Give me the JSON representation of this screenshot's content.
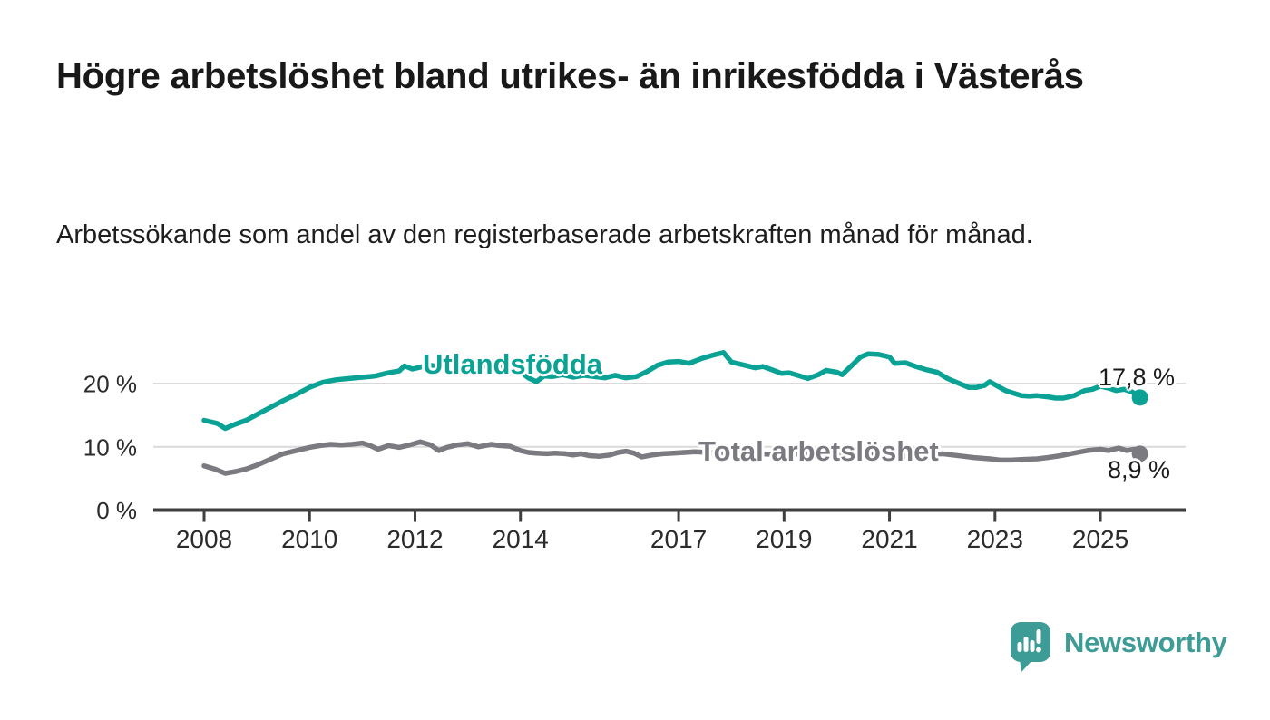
{
  "header": {
    "title": "Högre arbetslöshet bland utrikes- än inrikesfödda i Västerås",
    "subtitle": "Arbetssökande som andel av den registerbaserade arbetskraften månad för månad."
  },
  "branding": {
    "name": "Newsworthy",
    "color": "#3d9c95",
    "icon": "newsworthy-speech-bubble-bar-chart-icon"
  },
  "colors": {
    "axis": "#3f3f3f",
    "grid": "#dadada",
    "tick_text": "#2b2b2b",
    "title_text": "#191919"
  },
  "chart_data": {
    "type": "line",
    "title": "Högre arbetslöshet bland utrikes- än inrikesfödda i Västerås",
    "subtitle": "Arbetssökande som andel av den registerbaserade arbetskraften månad för månad.",
    "xlabel": "",
    "ylabel": "",
    "unit": "%",
    "grid": "horizontal",
    "legend_position": "inline-labels",
    "x_range": [
      2008,
      2025.75
    ],
    "ylim": [
      0,
      27
    ],
    "x_ticks": [
      2008,
      2010,
      2012,
      2014,
      2017,
      2019,
      2021,
      2023,
      2025
    ],
    "y_ticks": [
      {
        "value": 0,
        "label": "0 %"
      },
      {
        "value": 10,
        "label": "10 %"
      },
      {
        "value": 20,
        "label": "20 %"
      }
    ],
    "series": [
      {
        "name": "Utlandsfödda",
        "color": "#0aa294",
        "end_value": 17.8,
        "end_label": "17,8 %",
        "x": [
          2008.0,
          2008.25,
          2008.4,
          2008.6,
          2008.8,
          2009.0,
          2009.25,
          2009.5,
          2009.75,
          2010.0,
          2010.25,
          2010.5,
          2010.75,
          2011.0,
          2011.25,
          2011.5,
          2011.7,
          2011.8,
          2011.95,
          2012.1,
          2012.25,
          2012.4,
          2012.6,
          2012.8,
          2013.0,
          2013.2,
          2013.4,
          2013.6,
          2013.8,
          2014.0,
          2014.15,
          2014.3,
          2014.45,
          2014.6,
          2014.8,
          2015.0,
          2015.2,
          2015.4,
          2015.6,
          2015.8,
          2016.0,
          2016.2,
          2016.4,
          2016.6,
          2016.8,
          2017.0,
          2017.2,
          2017.45,
          2017.7,
          2017.85,
          2018.0,
          2018.2,
          2018.45,
          2018.6,
          2018.8,
          2018.95,
          2019.1,
          2019.3,
          2019.45,
          2019.65,
          2019.8,
          2020.0,
          2020.1,
          2020.25,
          2020.45,
          2020.6,
          2020.8,
          2021.0,
          2021.1,
          2021.3,
          2021.5,
          2021.7,
          2021.9,
          2022.1,
          2022.3,
          2022.5,
          2022.65,
          2022.8,
          2022.9,
          2023.05,
          2023.2,
          2023.35,
          2023.5,
          2023.65,
          2023.8,
          2024.0,
          2024.15,
          2024.3,
          2024.5,
          2024.7,
          2024.85,
          2025.0,
          2025.15,
          2025.3,
          2025.45,
          2025.6,
          2025.75
        ],
        "values": [
          14.2,
          13.7,
          12.9,
          13.6,
          14.2,
          15.1,
          16.2,
          17.3,
          18.3,
          19.4,
          20.2,
          20.6,
          20.8,
          21.0,
          21.2,
          21.7,
          22.0,
          22.8,
          22.3,
          22.6,
          23.0,
          22.7,
          22.9,
          22.8,
          23.0,
          22.7,
          22.9,
          22.6,
          22.4,
          21.9,
          20.9,
          20.3,
          21.2,
          21.1,
          21.4,
          21.0,
          21.3,
          21.1,
          20.9,
          21.3,
          20.9,
          21.1,
          21.9,
          22.9,
          23.4,
          23.5,
          23.2,
          24.0,
          24.6,
          24.9,
          23.4,
          23.0,
          22.5,
          22.7,
          22.1,
          21.6,
          21.7,
          21.2,
          20.8,
          21.4,
          22.1,
          21.8,
          21.4,
          22.6,
          24.2,
          24.7,
          24.6,
          24.2,
          23.2,
          23.3,
          22.7,
          22.2,
          21.8,
          20.8,
          20.1,
          19.4,
          19.4,
          19.7,
          20.3,
          19.6,
          18.9,
          18.5,
          18.1,
          18.0,
          18.1,
          17.9,
          17.7,
          17.7,
          18.1,
          18.9,
          19.1,
          19.6,
          19.3,
          18.9,
          19.1,
          18.7,
          17.8
        ]
      },
      {
        "name": "Total arbetslöshet",
        "color": "#7b7a80",
        "end_value": 8.9,
        "end_label": "8,9 %",
        "x": [
          2008.0,
          2008.2,
          2008.4,
          2008.6,
          2008.8,
          2009.0,
          2009.25,
          2009.5,
          2009.75,
          2010.0,
          2010.2,
          2010.4,
          2010.6,
          2010.8,
          2011.0,
          2011.15,
          2011.3,
          2011.5,
          2011.7,
          2011.9,
          2012.1,
          2012.3,
          2012.45,
          2012.6,
          2012.8,
          2013.0,
          2013.2,
          2013.45,
          2013.6,
          2013.8,
          2014.0,
          2014.15,
          2014.3,
          2014.5,
          2014.65,
          2014.85,
          2015.0,
          2015.15,
          2015.3,
          2015.5,
          2015.7,
          2015.85,
          2016.0,
          2016.15,
          2016.3,
          2016.5,
          2016.7,
          2016.9,
          2017.1,
          2017.3,
          2017.6,
          2017.9,
          2018.2,
          2018.5,
          2018.8,
          2019.1,
          2019.4,
          2019.7,
          2020.0,
          2020.3,
          2020.6,
          2020.9,
          2021.1,
          2021.3,
          2021.5,
          2021.75,
          2022.0,
          2022.2,
          2022.4,
          2022.6,
          2022.9,
          2023.1,
          2023.3,
          2023.5,
          2023.8,
          2024.0,
          2024.25,
          2024.5,
          2024.75,
          2025.0,
          2025.15,
          2025.35,
          2025.5,
          2025.65,
          2025.75
        ],
        "values": [
          7.0,
          6.5,
          5.8,
          6.1,
          6.5,
          7.1,
          8.0,
          8.9,
          9.4,
          9.9,
          10.2,
          10.4,
          10.3,
          10.4,
          10.6,
          10.2,
          9.6,
          10.2,
          9.9,
          10.3,
          10.8,
          10.3,
          9.4,
          9.9,
          10.3,
          10.5,
          10.0,
          10.4,
          10.2,
          10.1,
          9.4,
          9.1,
          9.0,
          8.9,
          9.0,
          8.9,
          8.7,
          8.9,
          8.6,
          8.5,
          8.7,
          9.1,
          9.3,
          9.0,
          8.4,
          8.7,
          8.9,
          9.0,
          9.1,
          9.2,
          9.1,
          9.0,
          8.9,
          8.9,
          8.8,
          8.9,
          8.8,
          8.9,
          9.0,
          8.9,
          8.8,
          8.7,
          8.6,
          8.5,
          8.4,
          8.6,
          8.9,
          8.7,
          8.5,
          8.3,
          8.1,
          7.9,
          7.9,
          8.0,
          8.1,
          8.3,
          8.6,
          9.0,
          9.4,
          9.6,
          9.4,
          9.8,
          9.4,
          9.6,
          8.9
        ]
      }
    ]
  }
}
